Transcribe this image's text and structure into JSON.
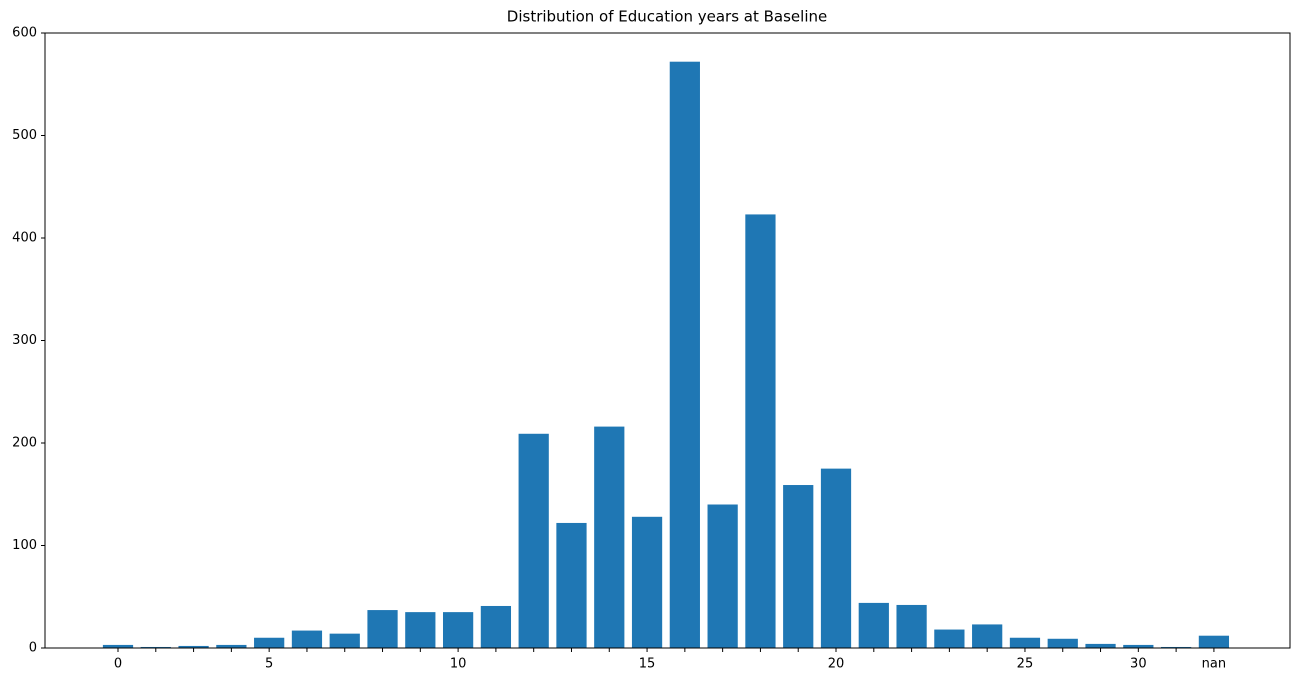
{
  "chart_data": {
    "type": "bar",
    "title": "Distribution of Education years at Baseline",
    "categories": [
      "0",
      null,
      null,
      null,
      "5",
      null,
      null,
      null,
      null,
      "10",
      null,
      null,
      null,
      null,
      "15",
      null,
      null,
      null,
      null,
      "20",
      null,
      null,
      null,
      null,
      "25",
      null,
      null,
      "30",
      null,
      "nan"
    ],
    "values": [
      3,
      1,
      2,
      3,
      10,
      17,
      14,
      37,
      35,
      35,
      41,
      209,
      122,
      216,
      128,
      572,
      140,
      423,
      159,
      175,
      44,
      42,
      18,
      23,
      10,
      9,
      4,
      3,
      1,
      12
    ],
    "color": "#1f77b4",
    "ylim": [
      0,
      600
    ],
    "yticks": [
      0,
      100,
      200,
      300,
      400,
      500,
      600
    ],
    "grid": false
  }
}
